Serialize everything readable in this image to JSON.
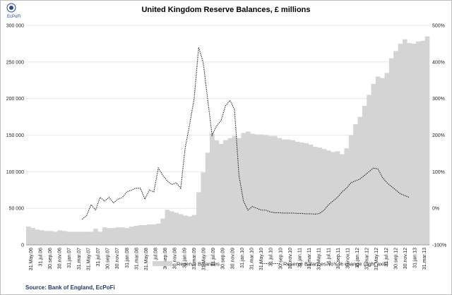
{
  "chart_data": {
    "type": "bar",
    "title": "United Kingdom Reserve Balances, £ millions",
    "logo_text": "EcPoFi",
    "source": "Source: Bank of England,  EcPoFi",
    "ylim_left": [
      0,
      300000
    ],
    "left_ticks": [
      "0",
      "50 000",
      "100 000",
      "150 000",
      "200 000",
      "250 000",
      "300 000"
    ],
    "ylim_right": [
      -100,
      500
    ],
    "right_ticks": [
      "-100%",
      "0%",
      "100%",
      "200%",
      "300%",
      "400%",
      "500%"
    ],
    "x_labels": [
      "31.May.06",
      "31.jul.06",
      "30.sep.06",
      "30.nov.06",
      "31.jan.07",
      "31.mar.07",
      "31.May.07",
      "31.jul.07",
      "30.sep.07",
      "30.nov.07",
      "31.jan.08",
      "31.mar.08",
      "31.May.08",
      "31.jul.08",
      "30.sep.08",
      "30.nov.08",
      "31.jan.09",
      "31.mar.09",
      "31.May.09",
      "31.jul.09",
      "30.sep.09",
      "30.nov.09",
      "31.jan.10",
      "31.mar.10",
      "31.May.10",
      "31.jul.10",
      "30.sep.10",
      "30.nov.10",
      "31.jan.11",
      "31.mar.11",
      "31.May.11",
      "31.jul.11",
      "30.sep.11",
      "30.nov.11",
      "31.jan.12",
      "31.mar.12",
      "31.May.12",
      "31.jul.12",
      "30.sep.12",
      "30.nov.12",
      "31.jan.13",
      "31.mar.13"
    ],
    "series": [
      {
        "name": "Reserve Balances",
        "axis": "left",
        "color": "#d4d4d4",
        "values": [
          25000,
          23000,
          21000,
          20000,
          19000,
          19000,
          18000,
          20000,
          19000,
          18000,
          18000,
          18000,
          18000,
          18000,
          18000,
          22000,
          18000,
          24000,
          23000,
          23000,
          24000,
          24000,
          23000,
          25000,
          26000,
          27000,
          27000,
          28000,
          28000,
          29000,
          36000,
          48000,
          46000,
          44000,
          42000,
          40000,
          39000,
          41000,
          72000,
          99000,
          126000,
          152000,
          143000,
          138000,
          143000,
          146000,
          149000,
          146000,
          153000,
          155000,
          152000,
          151000,
          151000,
          150000,
          149000,
          149000,
          146000,
          144000,
          144000,
          143000,
          141000,
          140000,
          139000,
          137000,
          134000,
          133000,
          131000,
          129000,
          127000,
          128000,
          124000,
          132000,
          150000,
          165000,
          175000,
          190000,
          205000,
          220000,
          230000,
          228000,
          235000,
          255000,
          265000,
          275000,
          281000,
          276000,
          275000,
          278000,
          279000,
          285000
        ]
      },
      {
        "name": "Reserve Balances YoY % change (right axis)",
        "axis": "right",
        "color": "#000000",
        "start_index": 12,
        "values": [
          -30,
          -20,
          10,
          -5,
          30,
          20,
          30,
          15,
          25,
          30,
          45,
          50,
          55,
          55,
          25,
          50,
          45,
          110,
          90,
          75,
          65,
          70,
          55,
          165,
          230,
          300,
          440,
          400,
          300,
          200,
          225,
          240,
          280,
          295,
          270,
          90,
          20,
          -5,
          5,
          0,
          -5,
          -5,
          -10,
          -12,
          -12,
          -13,
          -13,
          -13,
          -14,
          -14,
          -15,
          -15,
          -16,
          -14,
          -5,
          10,
          20,
          30,
          45,
          55,
          70,
          75,
          80,
          90,
          100,
          110,
          108,
          85,
          70,
          60,
          50,
          40,
          35,
          30
        ]
      }
    ],
    "legend_position": "bottom",
    "grid": true
  }
}
